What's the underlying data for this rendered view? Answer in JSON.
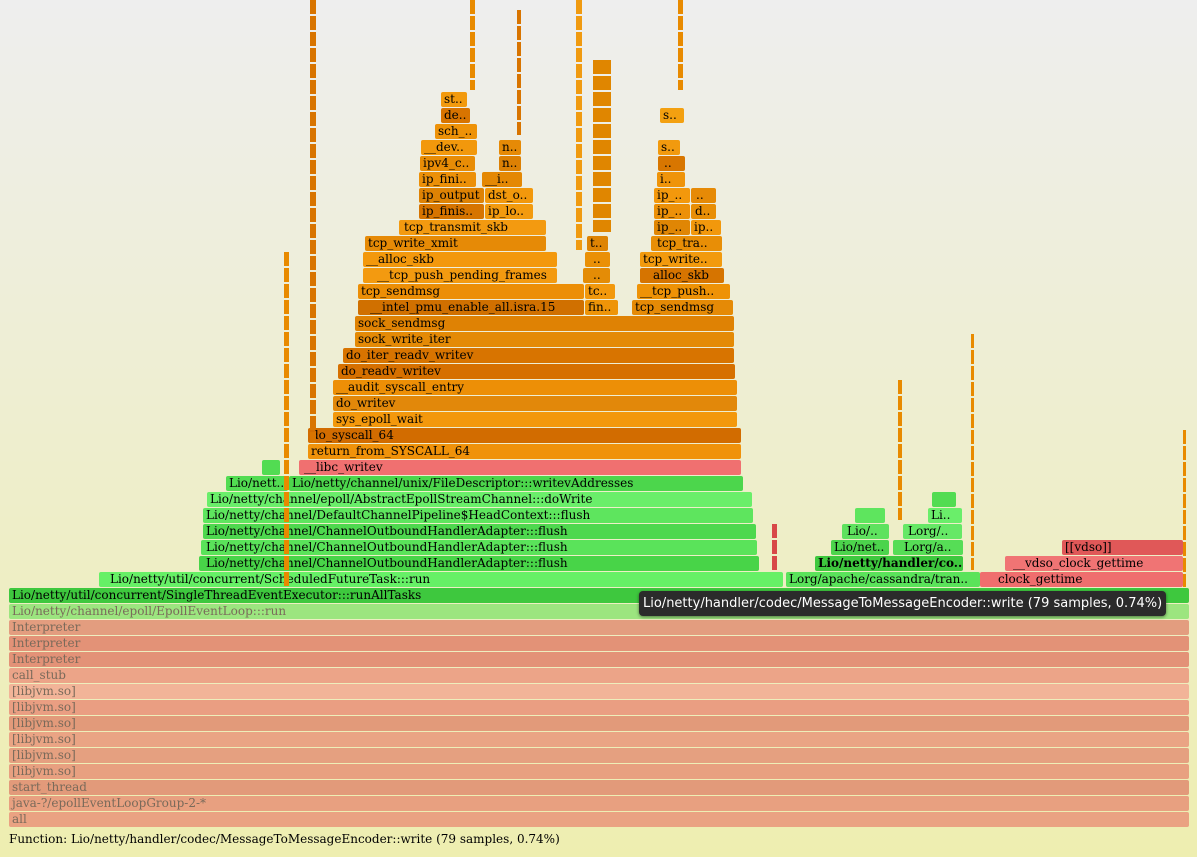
{
  "status": {
    "label": "Function:",
    "value": "Lio/netty/handler/codec/MessageToMessageEncoder::write (79 samples, 0.74%)"
  },
  "tooltip": "Lio/netty/handler/codec/MessageToMessageEncoder::write (79 samples, 0.74%)",
  "colors": {
    "kernel": "#e89a10",
    "java": "#52d852",
    "native": "#ef6a6a",
    "jvm": "#e8a080"
  },
  "frames": [
    {
      "t": "all",
      "c": "#eaa282",
      "dim": true
    },
    {
      "t": "java-?/epollEventLoopGroup-2-*",
      "c": "#e8a080",
      "dim": true
    },
    {
      "t": "start_thread",
      "c": "#e29a7a",
      "dim": true
    },
    {
      "t": "[libjvm.so]",
      "c": "#e8a080",
      "dim": true
    },
    {
      "t": "[libjvm.so]",
      "c": "#e5a080",
      "dim": true
    },
    {
      "t": "[libjvm.so]",
      "c": "#eaa484",
      "dim": true
    },
    {
      "t": "[libjvm.so]",
      "c": "#e29a7a",
      "dim": true
    },
    {
      "t": "[libjvm.so]",
      "c": "#ea9e82",
      "dim": true
    },
    {
      "t": "[libjvm.so]",
      "c": "#f2b498",
      "dim": true
    },
    {
      "t": "call_stub",
      "c": "#eca488",
      "dim": true
    },
    {
      "t": "Interpreter",
      "c": "#e39277",
      "dim": true
    },
    {
      "t": "Interpreter",
      "c": "#e39277",
      "dim": true
    },
    {
      "t": "Interpreter",
      "c": "#e39d7f",
      "dim": true
    },
    {
      "t": "Lio/netty/channel/epoll/EpollEventLoop:::run",
      "c": "#9ce57f",
      "dim": true
    },
    {
      "t": "Lio/netty/util/concurrent/SingleThreadEventExecutor:::runAllTasks",
      "c": "#3ec83e"
    },
    {
      "t": "Lio/netty/util/concurrent/ScheduledFutureTask:::run",
      "c": "#66f066"
    },
    {
      "t": "Lorg/apache/cassandra/tran..",
      "c": "#5ae35a"
    },
    {
      "t": "clock_gettime",
      "c": "#ef6e6e"
    },
    {
      "t": "Lio/netty/channel/ChannelOutboundHandlerAdapter:::flush",
      "c": "#48d448"
    },
    {
      "t": "Lio/netty/handler/co..",
      "c": "#3ec83e"
    },
    {
      "t": "__vdso_clock_gettime",
      "c": "#f07474"
    },
    {
      "t": "Lio/netty/channel/ChannelOutboundHandlerAdapter:::flush",
      "c": "#5ae35a"
    },
    {
      "t": "Lio/net..",
      "c": "#4cd44c"
    },
    {
      "t": "Lorg/a..",
      "c": "#56dd56"
    },
    {
      "t": "[[vdso]]",
      "c": "#e05858"
    },
    {
      "t": "Lio/netty/channel/ChannelOutboundHandlerAdapter:::flush",
      "c": "#4ed84e"
    },
    {
      "t": "Lio/..",
      "c": "#5ee25e"
    },
    {
      "t": "Lorg/..",
      "c": "#66e866"
    },
    {
      "t": "Lio/netty/channel/DefaultChannelPipeline$HeadContext:::flush",
      "c": "#5ee55e"
    },
    {
      "t": "Li..",
      "c": "#6aee6a"
    },
    {
      "t": "Lio/netty/channel/epoll/AbstractEpollStreamChannel:::doWrite",
      "c": "#6aee6a"
    },
    {
      "t": "Lio/nett..",
      "c": "#52dc52"
    },
    {
      "t": "Lio/netty/channel/unix/FileDescriptor:::writevAddresses",
      "c": "#4cd64c"
    },
    {
      "t": "__libc_writev",
      "c": "#f07070"
    },
    {
      "t": "return_from_SYSCALL_64",
      "c": "#f0920a"
    },
    {
      "t": "do_syscall_64",
      "c": "#d26c00"
    },
    {
      "t": "sys_epoll_wait",
      "c": "#f3980c"
    },
    {
      "t": "do_writev",
      "c": "#e2880a"
    },
    {
      "t": "__audit_syscall_entry",
      "c": "#ed8f06"
    },
    {
      "t": "do_readv_writev",
      "c": "#d67000"
    },
    {
      "t": "do_iter_readv_writev",
      "c": "#d87400"
    },
    {
      "t": "sock_write_iter",
      "c": "#e48a06"
    },
    {
      "t": "sock_sendmsg",
      "c": "#df8204"
    },
    {
      "t": "__intel_pmu_enable_all.isra.15",
      "c": "#d07000"
    },
    {
      "t": "fin..",
      "c": "#ee9408"
    },
    {
      "t": "tcp_sendmsg",
      "c": "#e58a06"
    },
    {
      "t": "tcp_sendmsg",
      "c": "#ec8e06"
    },
    {
      "t": "tc..",
      "c": "#f2980c"
    },
    {
      "t": "__tcp_push..",
      "c": "#ee9206"
    },
    {
      "t": "__tcp_push_pending_frames",
      "c": "#f39a10"
    },
    {
      "t": "..",
      "c": "#e48c06"
    },
    {
      "t": "alloc_skb",
      "c": "#d67400"
    },
    {
      "t": "__alloc_skb",
      "c": "#f3980c"
    },
    {
      "t": "..",
      "c": "#ea9006"
    },
    {
      "t": "tcp_write..",
      "c": "#f29a0e"
    },
    {
      "t": "tcp_write_xmit",
      "c": "#e68a06"
    },
    {
      "t": "t..",
      "c": "#de8404"
    },
    {
      "t": "tcp_tra..",
      "c": "#e88e06"
    },
    {
      "t": "tcp_transmit_skb",
      "c": "#f39a10"
    },
    {
      "t": "ip_..",
      "c": "#e08604"
    },
    {
      "t": "ip..",
      "c": "#f2980c"
    },
    {
      "t": "ip_finis..",
      "c": "#d67400"
    },
    {
      "t": "ip_lo..",
      "c": "#f29a0e"
    },
    {
      "t": "ip_..",
      "c": "#ec9008"
    },
    {
      "t": "d..",
      "c": "#e88e06"
    },
    {
      "t": "ip_output",
      "c": "#de8204"
    },
    {
      "t": "dst_o..",
      "c": "#f2980c"
    },
    {
      "t": "ip_..",
      "c": "#f3980c"
    },
    {
      "t": "..",
      "c": "#e68a06"
    },
    {
      "t": "ip_fini..",
      "c": "#ec9008"
    },
    {
      "t": "__i..",
      "c": "#e48804"
    },
    {
      "t": "i..",
      "c": "#ef940a"
    },
    {
      "t": "ipv4_c..",
      "c": "#e88c06"
    },
    {
      "t": "n..",
      "c": "#dc8004"
    },
    {
      "t": "..",
      "c": "#d87600"
    },
    {
      "t": "__dev..",
      "c": "#f2980c"
    },
    {
      "t": "n..",
      "c": "#e68a06"
    },
    {
      "t": "s..",
      "c": "#f29a0e"
    },
    {
      "t": "sch_..",
      "c": "#ee9208"
    },
    {
      "t": "de..",
      "c": "#d87400"
    },
    {
      "t": "s..",
      "c": "#f3a010"
    },
    {
      "t": "st..",
      "c": "#f29a0e"
    }
  ]
}
